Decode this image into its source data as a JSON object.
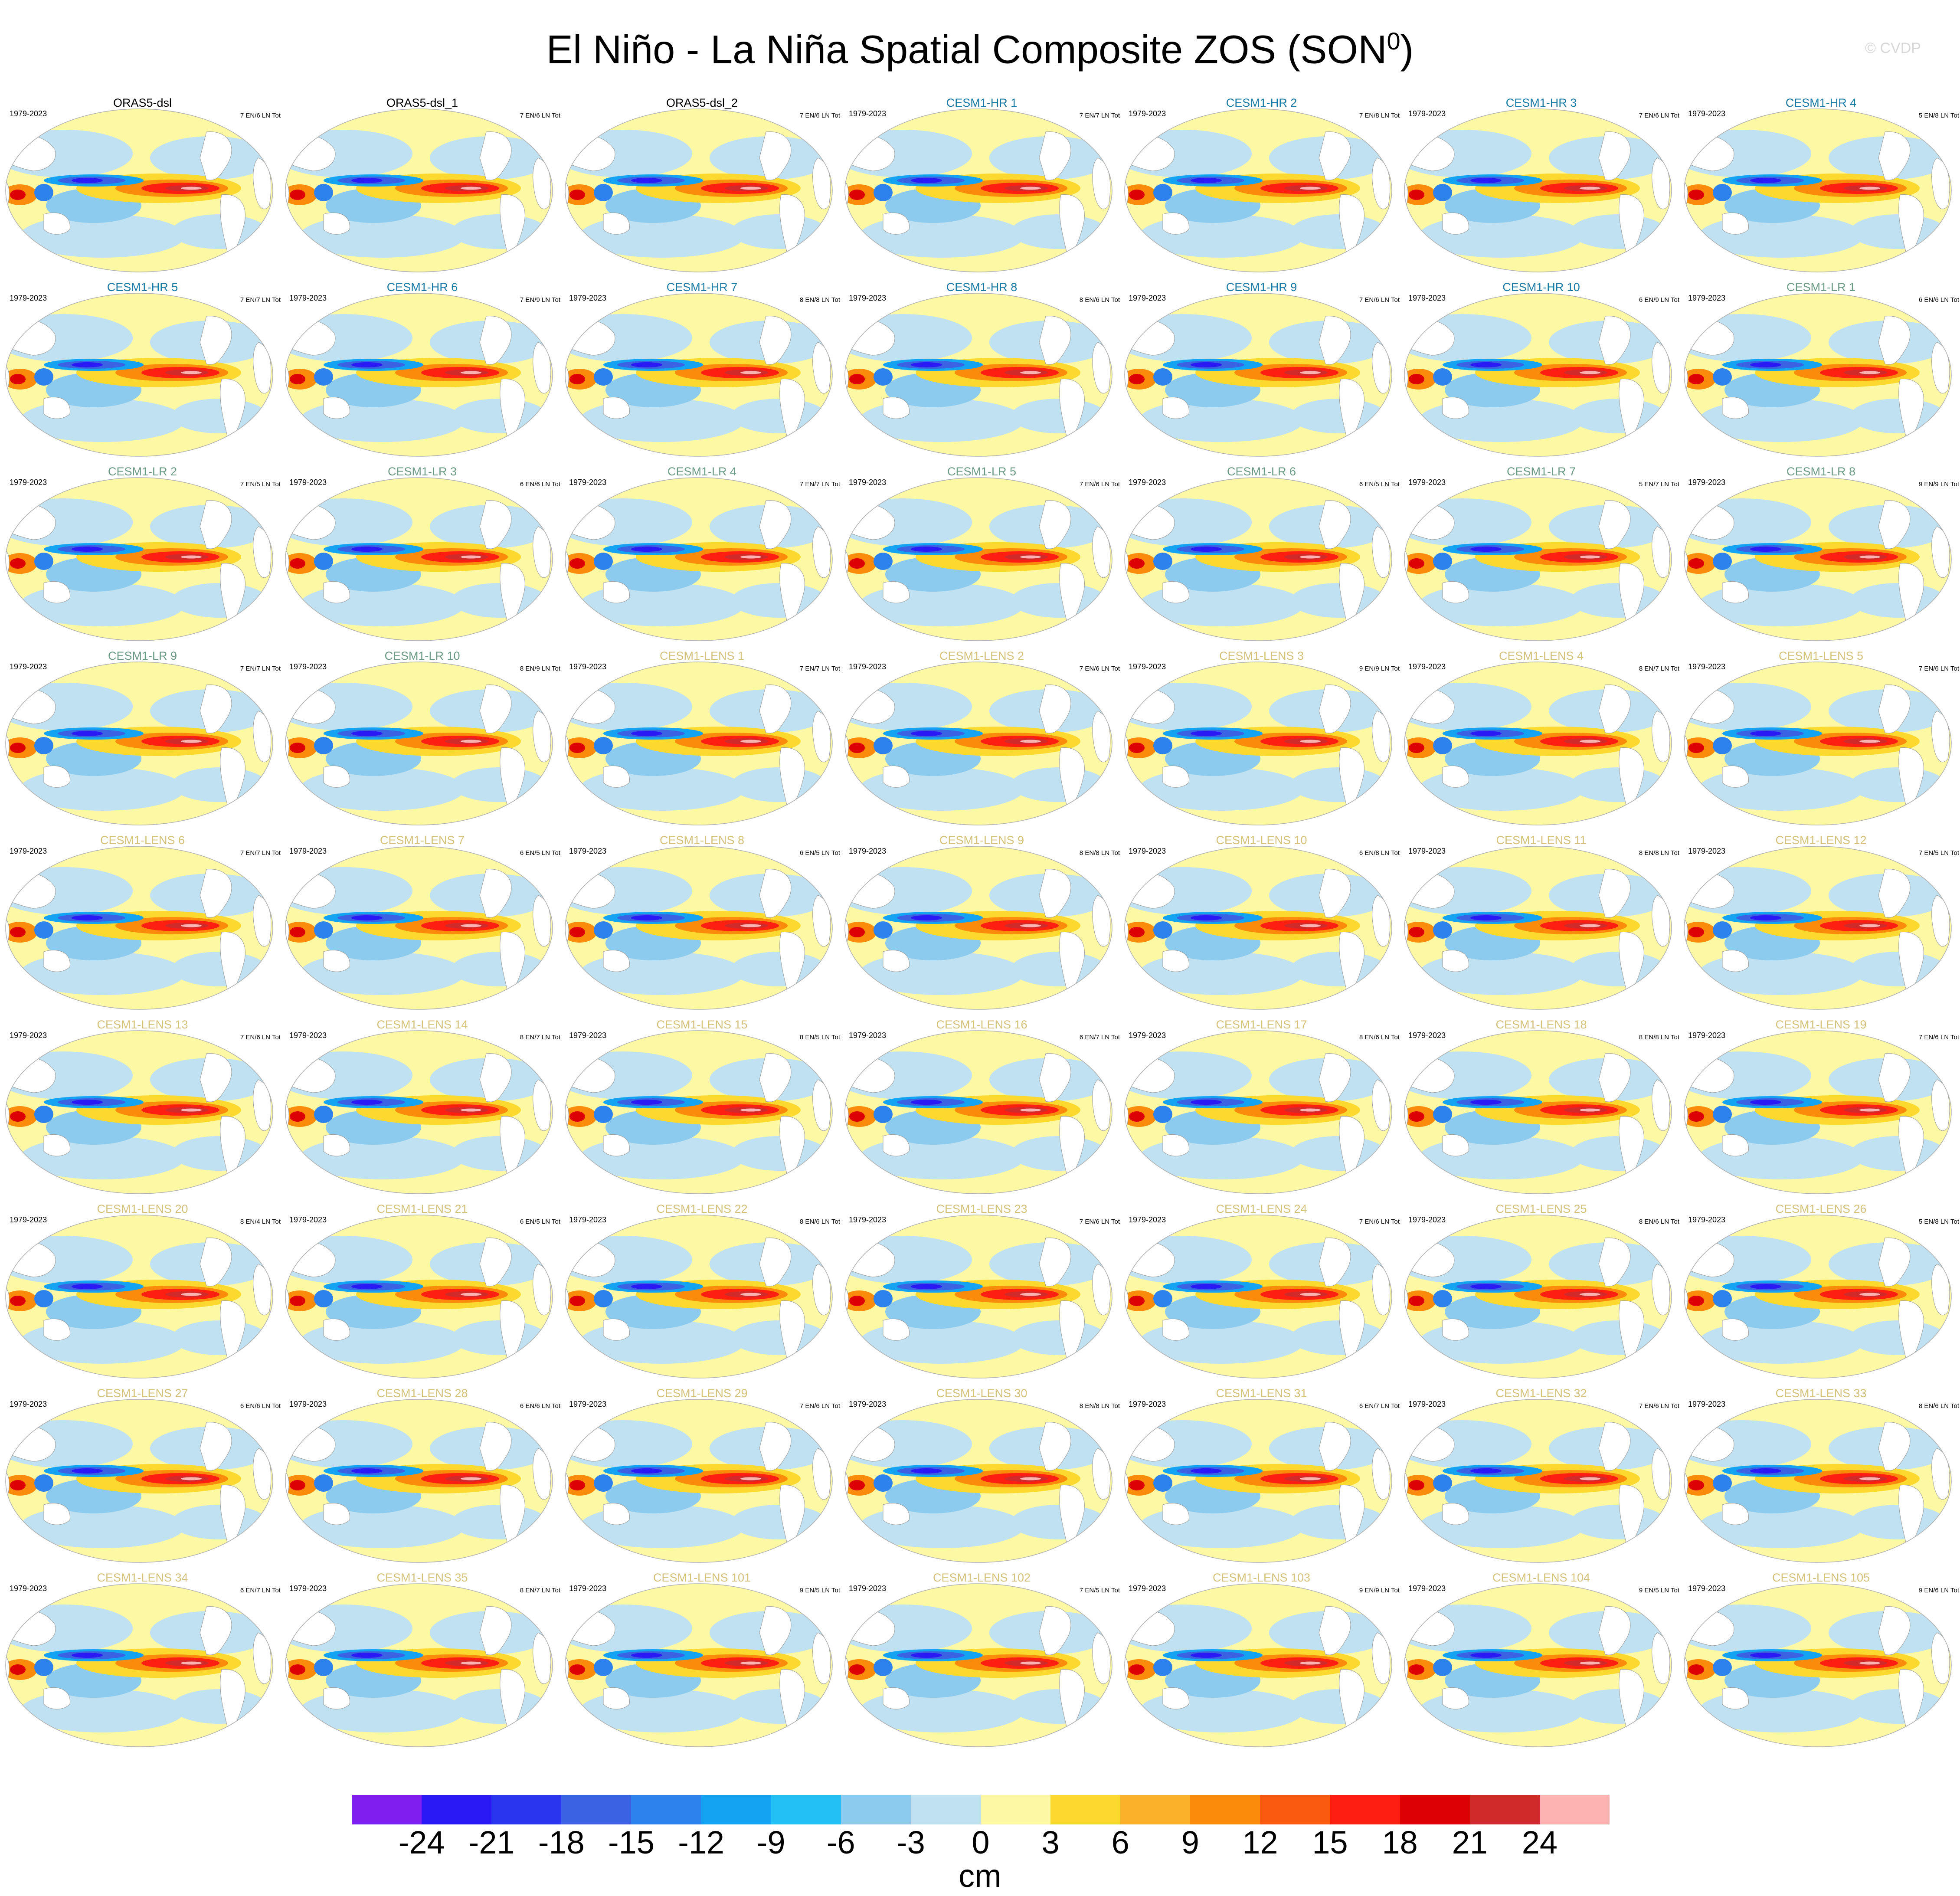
{
  "title": {
    "main": "El Niño - La Niña Spatial Composite ZOS (SON",
    "superscript": "0",
    "close": ")"
  },
  "credit": "© CVDP",
  "colorbar": {
    "units": "cm",
    "tick_labels": [
      "-24",
      "-21",
      "-18",
      "-15",
      "-12",
      "-9",
      "-6",
      "-3",
      "0",
      "3",
      "6",
      "9",
      "12",
      "15",
      "18",
      "21",
      "24"
    ],
    "colors": [
      "#7e1ff0",
      "#2a19f5",
      "#2a36ee",
      "#3a62e2",
      "#2d82ee",
      "#14a2f3",
      "#22c0f4",
      "#8ccbed",
      "#bfe1f1",
      "#fdf8a3",
      "#fcd92f",
      "#fcb12a",
      "#fb8c0b",
      "#fa5a0f",
      "#ff1e12",
      "#dd0005",
      "#d12a2a",
      "#feb3b3"
    ]
  },
  "panels": [
    {
      "name": "ORAS5-dsl",
      "years": "1979-2023",
      "counts": "7 EN/6 LN Tot",
      "name_color": "#000000"
    },
    {
      "name": "ORAS5-dsl_1",
      "years": "",
      "counts": "7 EN/6 LN Tot",
      "name_color": "#000000"
    },
    {
      "name": "ORAS5-dsl_2",
      "years": "",
      "counts": "7 EN/6 LN Tot",
      "name_color": "#000000"
    },
    {
      "name": "CESM1-HR 1",
      "years": "1979-2023",
      "counts": "7 EN/7 LN Tot",
      "name_color": "#1a7ca6"
    },
    {
      "name": "CESM1-HR 2",
      "years": "1979-2023",
      "counts": "7 EN/8 LN Tot",
      "name_color": "#1a7ca6"
    },
    {
      "name": "CESM1-HR 3",
      "years": "1979-2023",
      "counts": "7 EN/6 LN Tot",
      "name_color": "#1a7ca6"
    },
    {
      "name": "CESM1-HR 4",
      "years": "1979-2023",
      "counts": "5 EN/8 LN Tot",
      "name_color": "#1a7ca6"
    },
    {
      "name": "CESM1-HR 5",
      "years": "1979-2023",
      "counts": "7 EN/7 LN Tot",
      "name_color": "#1a7ca6"
    },
    {
      "name": "CESM1-HR 6",
      "years": "1979-2023",
      "counts": "7 EN/9 LN Tot",
      "name_color": "#1a7ca6"
    },
    {
      "name": "CESM1-HR 7",
      "years": "1979-2023",
      "counts": "8 EN/8 LN Tot",
      "name_color": "#1a7ca6"
    },
    {
      "name": "CESM1-HR 8",
      "years": "1979-2023",
      "counts": "8 EN/6 LN Tot",
      "name_color": "#1a7ca6"
    },
    {
      "name": "CESM1-HR 9",
      "years": "1979-2023",
      "counts": "7 EN/6 LN Tot",
      "name_color": "#1a7ca6"
    },
    {
      "name": "CESM1-HR 10",
      "years": "1979-2023",
      "counts": "6 EN/9 LN Tot",
      "name_color": "#1a7ca6"
    },
    {
      "name": "CESM1-LR 1",
      "years": "1979-2023",
      "counts": "6 EN/6 LN Tot",
      "name_color": "#6b9a86"
    },
    {
      "name": "CESM1-LR 2",
      "years": "1979-2023",
      "counts": "7 EN/5 LN Tot",
      "name_color": "#6b9a86"
    },
    {
      "name": "CESM1-LR 3",
      "years": "1979-2023",
      "counts": "6 EN/6 LN Tot",
      "name_color": "#6b9a86"
    },
    {
      "name": "CESM1-LR 4",
      "years": "1979-2023",
      "counts": "7 EN/7 LN Tot",
      "name_color": "#6b9a86"
    },
    {
      "name": "CESM1-LR 5",
      "years": "1979-2023",
      "counts": "7 EN/6 LN Tot",
      "name_color": "#6b9a86"
    },
    {
      "name": "CESM1-LR 6",
      "years": "1979-2023",
      "counts": "6 EN/5 LN Tot",
      "name_color": "#6b9a86"
    },
    {
      "name": "CESM1-LR 7",
      "years": "1979-2023",
      "counts": "5 EN/7 LN Tot",
      "name_color": "#6b9a86"
    },
    {
      "name": "CESM1-LR 8",
      "years": "1979-2023",
      "counts": "9 EN/9 LN Tot",
      "name_color": "#6b9a86"
    },
    {
      "name": "CESM1-LR 9",
      "years": "1979-2023",
      "counts": "7 EN/7 LN Tot",
      "name_color": "#6b9a86"
    },
    {
      "name": "CESM1-LR 10",
      "years": "1979-2023",
      "counts": "8 EN/9 LN Tot",
      "name_color": "#6b9a86"
    },
    {
      "name": "CESM1-LENS 1",
      "years": "1979-2023",
      "counts": "7 EN/7 LN Tot",
      "name_color": "#d4c27a"
    },
    {
      "name": "CESM1-LENS 2",
      "years": "1979-2023",
      "counts": "7 EN/6 LN Tot",
      "name_color": "#d4c27a"
    },
    {
      "name": "CESM1-LENS 3",
      "years": "1979-2023",
      "counts": "9 EN/9 LN Tot",
      "name_color": "#d4c27a"
    },
    {
      "name": "CESM1-LENS 4",
      "years": "1979-2023",
      "counts": "8 EN/7 LN Tot",
      "name_color": "#d4c27a"
    },
    {
      "name": "CESM1-LENS 5",
      "years": "1979-2023",
      "counts": "7 EN/6 LN Tot",
      "name_color": "#d4c27a"
    },
    {
      "name": "CESM1-LENS 6",
      "years": "1979-2023",
      "counts": "7 EN/7 LN Tot",
      "name_color": "#d4c27a"
    },
    {
      "name": "CESM1-LENS 7",
      "years": "1979-2023",
      "counts": "6 EN/5 LN Tot",
      "name_color": "#d4c27a"
    },
    {
      "name": "CESM1-LENS 8",
      "years": "1979-2023",
      "counts": "6 EN/5 LN Tot",
      "name_color": "#d4c27a"
    },
    {
      "name": "CESM1-LENS 9",
      "years": "1979-2023",
      "counts": "8 EN/8 LN Tot",
      "name_color": "#d4c27a"
    },
    {
      "name": "CESM1-LENS 10",
      "years": "1979-2023",
      "counts": "6 EN/8 LN Tot",
      "name_color": "#d4c27a"
    },
    {
      "name": "CESM1-LENS 11",
      "years": "1979-2023",
      "counts": "8 EN/8 LN Tot",
      "name_color": "#d4c27a"
    },
    {
      "name": "CESM1-LENS 12",
      "years": "1979-2023",
      "counts": "7 EN/5 LN Tot",
      "name_color": "#d4c27a"
    },
    {
      "name": "CESM1-LENS 13",
      "years": "1979-2023",
      "counts": "7 EN/6 LN Tot",
      "name_color": "#d4c27a"
    },
    {
      "name": "CESM1-LENS 14",
      "years": "1979-2023",
      "counts": "8 EN/7 LN Tot",
      "name_color": "#d4c27a"
    },
    {
      "name": "CESM1-LENS 15",
      "years": "1979-2023",
      "counts": "8 EN/5 LN Tot",
      "name_color": "#d4c27a"
    },
    {
      "name": "CESM1-LENS 16",
      "years": "1979-2023",
      "counts": "6 EN/7 LN Tot",
      "name_color": "#d4c27a"
    },
    {
      "name": "CESM1-LENS 17",
      "years": "1979-2023",
      "counts": "8 EN/6 LN Tot",
      "name_color": "#d4c27a"
    },
    {
      "name": "CESM1-LENS 18",
      "years": "1979-2023",
      "counts": "8 EN/8 LN Tot",
      "name_color": "#d4c27a"
    },
    {
      "name": "CESM1-LENS 19",
      "years": "1979-2023",
      "counts": "7 EN/6 LN Tot",
      "name_color": "#d4c27a"
    },
    {
      "name": "CESM1-LENS 20",
      "years": "1979-2023",
      "counts": "8 EN/4 LN Tot",
      "name_color": "#d4c27a"
    },
    {
      "name": "CESM1-LENS 21",
      "years": "1979-2023",
      "counts": "6 EN/5 LN Tot",
      "name_color": "#d4c27a"
    },
    {
      "name": "CESM1-LENS 22",
      "years": "1979-2023",
      "counts": "8 EN/6 LN Tot",
      "name_color": "#d4c27a"
    },
    {
      "name": "CESM1-LENS 23",
      "years": "1979-2023",
      "counts": "7 EN/6 LN Tot",
      "name_color": "#d4c27a"
    },
    {
      "name": "CESM1-LENS 24",
      "years": "1979-2023",
      "counts": "7 EN/6 LN Tot",
      "name_color": "#d4c27a"
    },
    {
      "name": "CESM1-LENS 25",
      "years": "1979-2023",
      "counts": "8 EN/6 LN Tot",
      "name_color": "#d4c27a"
    },
    {
      "name": "CESM1-LENS 26",
      "years": "1979-2023",
      "counts": "5 EN/8 LN Tot",
      "name_color": "#d4c27a"
    },
    {
      "name": "CESM1-LENS 27",
      "years": "1979-2023",
      "counts": "6 EN/6 LN Tot",
      "name_color": "#d4c27a"
    },
    {
      "name": "CESM1-LENS 28",
      "years": "1979-2023",
      "counts": "6 EN/6 LN Tot",
      "name_color": "#d4c27a"
    },
    {
      "name": "CESM1-LENS 29",
      "years": "1979-2023",
      "counts": "7 EN/6 LN Tot",
      "name_color": "#d4c27a"
    },
    {
      "name": "CESM1-LENS 30",
      "years": "1979-2023",
      "counts": "8 EN/8 LN Tot",
      "name_color": "#d4c27a"
    },
    {
      "name": "CESM1-LENS 31",
      "years": "1979-2023",
      "counts": "6 EN/7 LN Tot",
      "name_color": "#d4c27a"
    },
    {
      "name": "CESM1-LENS 32",
      "years": "1979-2023",
      "counts": "7 EN/6 LN Tot",
      "name_color": "#d4c27a"
    },
    {
      "name": "CESM1-LENS 33",
      "years": "1979-2023",
      "counts": "8 EN/6 LN Tot",
      "name_color": "#d4c27a"
    },
    {
      "name": "CESM1-LENS 34",
      "years": "1979-2023",
      "counts": "6 EN/7 LN Tot",
      "name_color": "#d4c27a"
    },
    {
      "name": "CESM1-LENS 35",
      "years": "1979-2023",
      "counts": "8 EN/7 LN Tot",
      "name_color": "#d4c27a"
    },
    {
      "name": "CESM1-LENS 101",
      "years": "1979-2023",
      "counts": "9 EN/5 LN Tot",
      "name_color": "#d4c27a"
    },
    {
      "name": "CESM1-LENS 102",
      "years": "1979-2023",
      "counts": "7 EN/5 LN Tot",
      "name_color": "#d4c27a"
    },
    {
      "name": "CESM1-LENS 103",
      "years": "1979-2023",
      "counts": "9 EN/9 LN Tot",
      "name_color": "#d4c27a"
    },
    {
      "name": "CESM1-LENS 104",
      "years": "1979-2023",
      "counts": "9 EN/5 LN Tot",
      "name_color": "#d4c27a"
    },
    {
      "name": "CESM1-LENS 105",
      "years": "1979-2023",
      "counts": "9 EN/6 LN Tot",
      "name_color": "#d4c27a"
    }
  ]
}
